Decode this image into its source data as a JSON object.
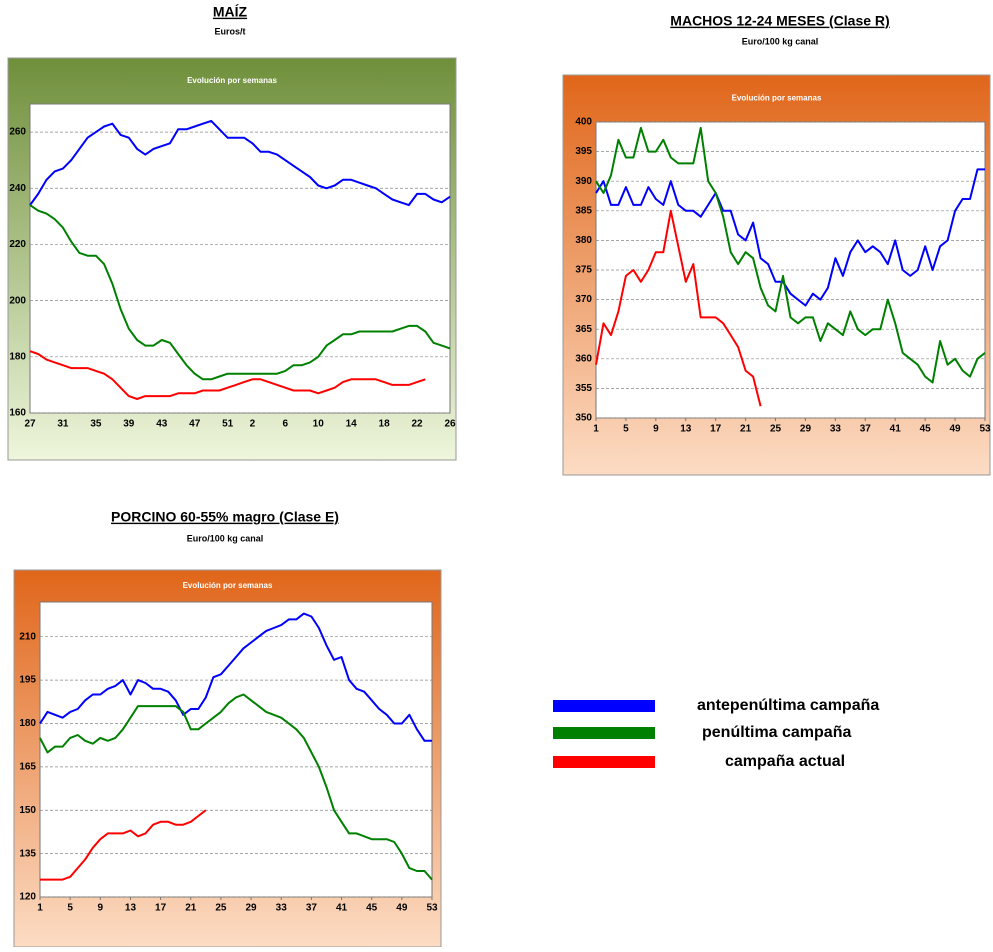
{
  "chart_data": [
    {
      "type": "line",
      "title": "MAÍZ",
      "subtitle": "Euros/t",
      "panel_title": "Evolución por semanas",
      "categories": [
        "27",
        null,
        null,
        null,
        "31",
        null,
        null,
        null,
        "35",
        null,
        null,
        null,
        "39",
        null,
        null,
        null,
        "43",
        null,
        null,
        null,
        "47",
        null,
        null,
        null,
        "51",
        null,
        null,
        "2",
        null,
        null,
        null,
        "6",
        null,
        null,
        null,
        "10",
        null,
        null,
        null,
        "14",
        null,
        null,
        null,
        "18",
        null,
        null,
        null,
        "22",
        null,
        null,
        null,
        "26"
      ],
      "ylim": [
        160,
        270
      ],
      "yticks": [
        160,
        180,
        200,
        220,
        240,
        260
      ],
      "grid": true,
      "series": [
        {
          "color": "#0000ff",
          "values": [
            234,
            238,
            243,
            246,
            247,
            250,
            254,
            258,
            260,
            262,
            263,
            259,
            258,
            254,
            252,
            254,
            255,
            256,
            261,
            261,
            262,
            263,
            264,
            261,
            258,
            258,
            258,
            256,
            253,
            253,
            252,
            250,
            248,
            246,
            244,
            241,
            240,
            241,
            243,
            243,
            242,
            241,
            240,
            238,
            236,
            235,
            234,
            238,
            238,
            236,
            235,
            237
          ]
        },
        {
          "color": "#008000",
          "values": [
            234,
            232,
            231,
            229,
            226,
            221,
            217,
            216,
            216,
            213,
            206,
            197,
            190,
            186,
            184,
            184,
            186,
            185,
            181,
            177,
            174,
            172,
            172,
            173,
            174,
            174,
            174,
            174,
            174,
            174,
            174,
            175,
            177,
            177,
            178,
            180,
            184,
            186,
            188,
            188,
            189,
            189,
            189,
            189,
            189,
            190,
            191,
            191,
            189,
            185,
            184,
            183
          ]
        },
        {
          "color": "#ff0000",
          "values": [
            182,
            181,
            179,
            178,
            177,
            176,
            176,
            176,
            175,
            174,
            172,
            169,
            166,
            165,
            166,
            166,
            166,
            166,
            167,
            167,
            167,
            168,
            168,
            168,
            169,
            170,
            171,
            172,
            172,
            171,
            170,
            169,
            168,
            168,
            168,
            167,
            168,
            169,
            171,
            172,
            172,
            172,
            172,
            171,
            170,
            170,
            170,
            171,
            172,
            null,
            null,
            null
          ]
        }
      ]
    },
    {
      "type": "line",
      "title": "MACHOS 12-24 MESES (Clase R)",
      "subtitle": "Euro/100 kg canal",
      "panel_title": "Evolución por semanas",
      "x": [
        1,
        2,
        3,
        4,
        5,
        6,
        7,
        8,
        9,
        10,
        11,
        12,
        13,
        14,
        15,
        16,
        17,
        18,
        19,
        20,
        21,
        22,
        23,
        24,
        25,
        26,
        27,
        28,
        29,
        30,
        31,
        32,
        33,
        34,
        35,
        36,
        37,
        38,
        39,
        40,
        41,
        42,
        43,
        44,
        45,
        46,
        47,
        48,
        49,
        50,
        51,
        52,
        53
      ],
      "xlim": [
        1,
        53
      ],
      "xticks": [
        1,
        5,
        9,
        13,
        17,
        21,
        25,
        29,
        33,
        37,
        41,
        45,
        49,
        53
      ],
      "ylim": [
        350,
        400
      ],
      "yticks": [
        350,
        355,
        360,
        365,
        370,
        375,
        380,
        385,
        390,
        395,
        400
      ],
      "grid": true,
      "series": [
        {
          "color": "#0000ff",
          "values": [
            388,
            390,
            386,
            386,
            389,
            386,
            386,
            389,
            387,
            386,
            390,
            386,
            385,
            385,
            384,
            386,
            388,
            385,
            385,
            381,
            380,
            383,
            377,
            376,
            373,
            373,
            371,
            370,
            369,
            371,
            370,
            372,
            377,
            374,
            378,
            380,
            378,
            379,
            378,
            376,
            380,
            375,
            374,
            375,
            379,
            375,
            379,
            380,
            385,
            387,
            387,
            392,
            392
          ]
        },
        {
          "color": "#008000",
          "values": [
            390,
            388,
            391,
            397,
            394,
            394,
            399,
            395,
            395,
            397,
            394,
            393,
            393,
            393,
            399,
            390,
            388,
            384,
            378,
            376,
            378,
            377,
            372,
            369,
            368,
            374,
            367,
            366,
            367,
            367,
            363,
            366,
            365,
            364,
            368,
            365,
            364,
            365,
            365,
            370,
            366,
            361,
            360,
            359,
            357,
            356,
            363,
            359,
            360,
            358,
            357,
            360,
            361
          ]
        },
        {
          "color": "#ff0000",
          "values": [
            359,
            366,
            364,
            368,
            374,
            375,
            373,
            375,
            378,
            378,
            385,
            379,
            373,
            376,
            367,
            367,
            367,
            366,
            364,
            362,
            358,
            357,
            352,
            null,
            null,
            null,
            null,
            null,
            null,
            null,
            null,
            null,
            null,
            null,
            null,
            null,
            null,
            null,
            null,
            null,
            null,
            null,
            null,
            null,
            null,
            null,
            null,
            null,
            null,
            null,
            null,
            null,
            null
          ]
        }
      ]
    },
    {
      "type": "line",
      "title": "PORCINO 60-55% magro (Clase E)",
      "subtitle": "Euro/100 kg canal",
      "panel_title": "Evolución por semanas",
      "x": [
        1,
        2,
        3,
        4,
        5,
        6,
        7,
        8,
        9,
        10,
        11,
        12,
        13,
        14,
        15,
        16,
        17,
        18,
        19,
        20,
        21,
        22,
        23,
        24,
        25,
        26,
        27,
        28,
        29,
        30,
        31,
        32,
        33,
        34,
        35,
        36,
        37,
        38,
        39,
        40,
        41,
        42,
        43,
        44,
        45,
        46,
        47,
        48,
        49,
        50,
        51,
        52,
        53
      ],
      "xlim": [
        1,
        53
      ],
      "xticks": [
        1,
        5,
        9,
        13,
        17,
        21,
        25,
        29,
        33,
        37,
        41,
        45,
        49,
        53
      ],
      "ylim": [
        120,
        222
      ],
      "yticks": [
        120,
        135,
        150,
        165,
        180,
        195,
        210
      ],
      "grid": true,
      "series": [
        {
          "color": "#0000ff",
          "values": [
            180,
            184,
            183,
            182,
            184,
            185,
            188,
            190,
            190,
            192,
            193,
            195,
            190,
            195,
            194,
            192,
            192,
            191,
            188,
            183,
            185,
            185,
            189,
            196,
            197,
            200,
            203,
            206,
            208,
            210,
            212,
            213,
            214,
            216,
            216,
            218,
            217,
            213,
            207,
            202,
            203,
            195,
            192,
            191,
            188,
            185,
            183,
            180,
            180,
            183,
            178,
            174,
            174
          ]
        },
        {
          "color": "#008000",
          "values": [
            175,
            170,
            172,
            172,
            175,
            176,
            174,
            173,
            175,
            174,
            175,
            178,
            182,
            186,
            186,
            186,
            186,
            186,
            186,
            184,
            178,
            178,
            180,
            182,
            184,
            187,
            189,
            190,
            188,
            186,
            184,
            183,
            182,
            180,
            178,
            175,
            170,
            165,
            158,
            150,
            146,
            142,
            142,
            141,
            140,
            140,
            140,
            139,
            135,
            130,
            129,
            129,
            126
          ]
        },
        {
          "color": "#ff0000",
          "values": [
            126,
            126,
            126,
            126,
            127,
            130,
            133,
            137,
            140,
            142,
            142,
            142,
            143,
            141,
            142,
            145,
            146,
            146,
            145,
            145,
            146,
            148,
            150,
            null,
            null,
            null,
            null,
            null,
            null,
            null,
            null,
            null,
            null,
            null,
            null,
            null,
            null,
            null,
            null,
            null,
            null,
            null,
            null,
            null,
            null,
            null,
            null,
            null,
            null,
            null,
            null,
            null,
            null
          ]
        }
      ]
    }
  ],
  "legend": [
    {
      "label": "antepenúltima campaña",
      "color": "#0000ff"
    },
    {
      "label": "penúltima campaña",
      "color": "#008000"
    },
    {
      "label": "campaña actual",
      "color": "#ff0000"
    }
  ]
}
